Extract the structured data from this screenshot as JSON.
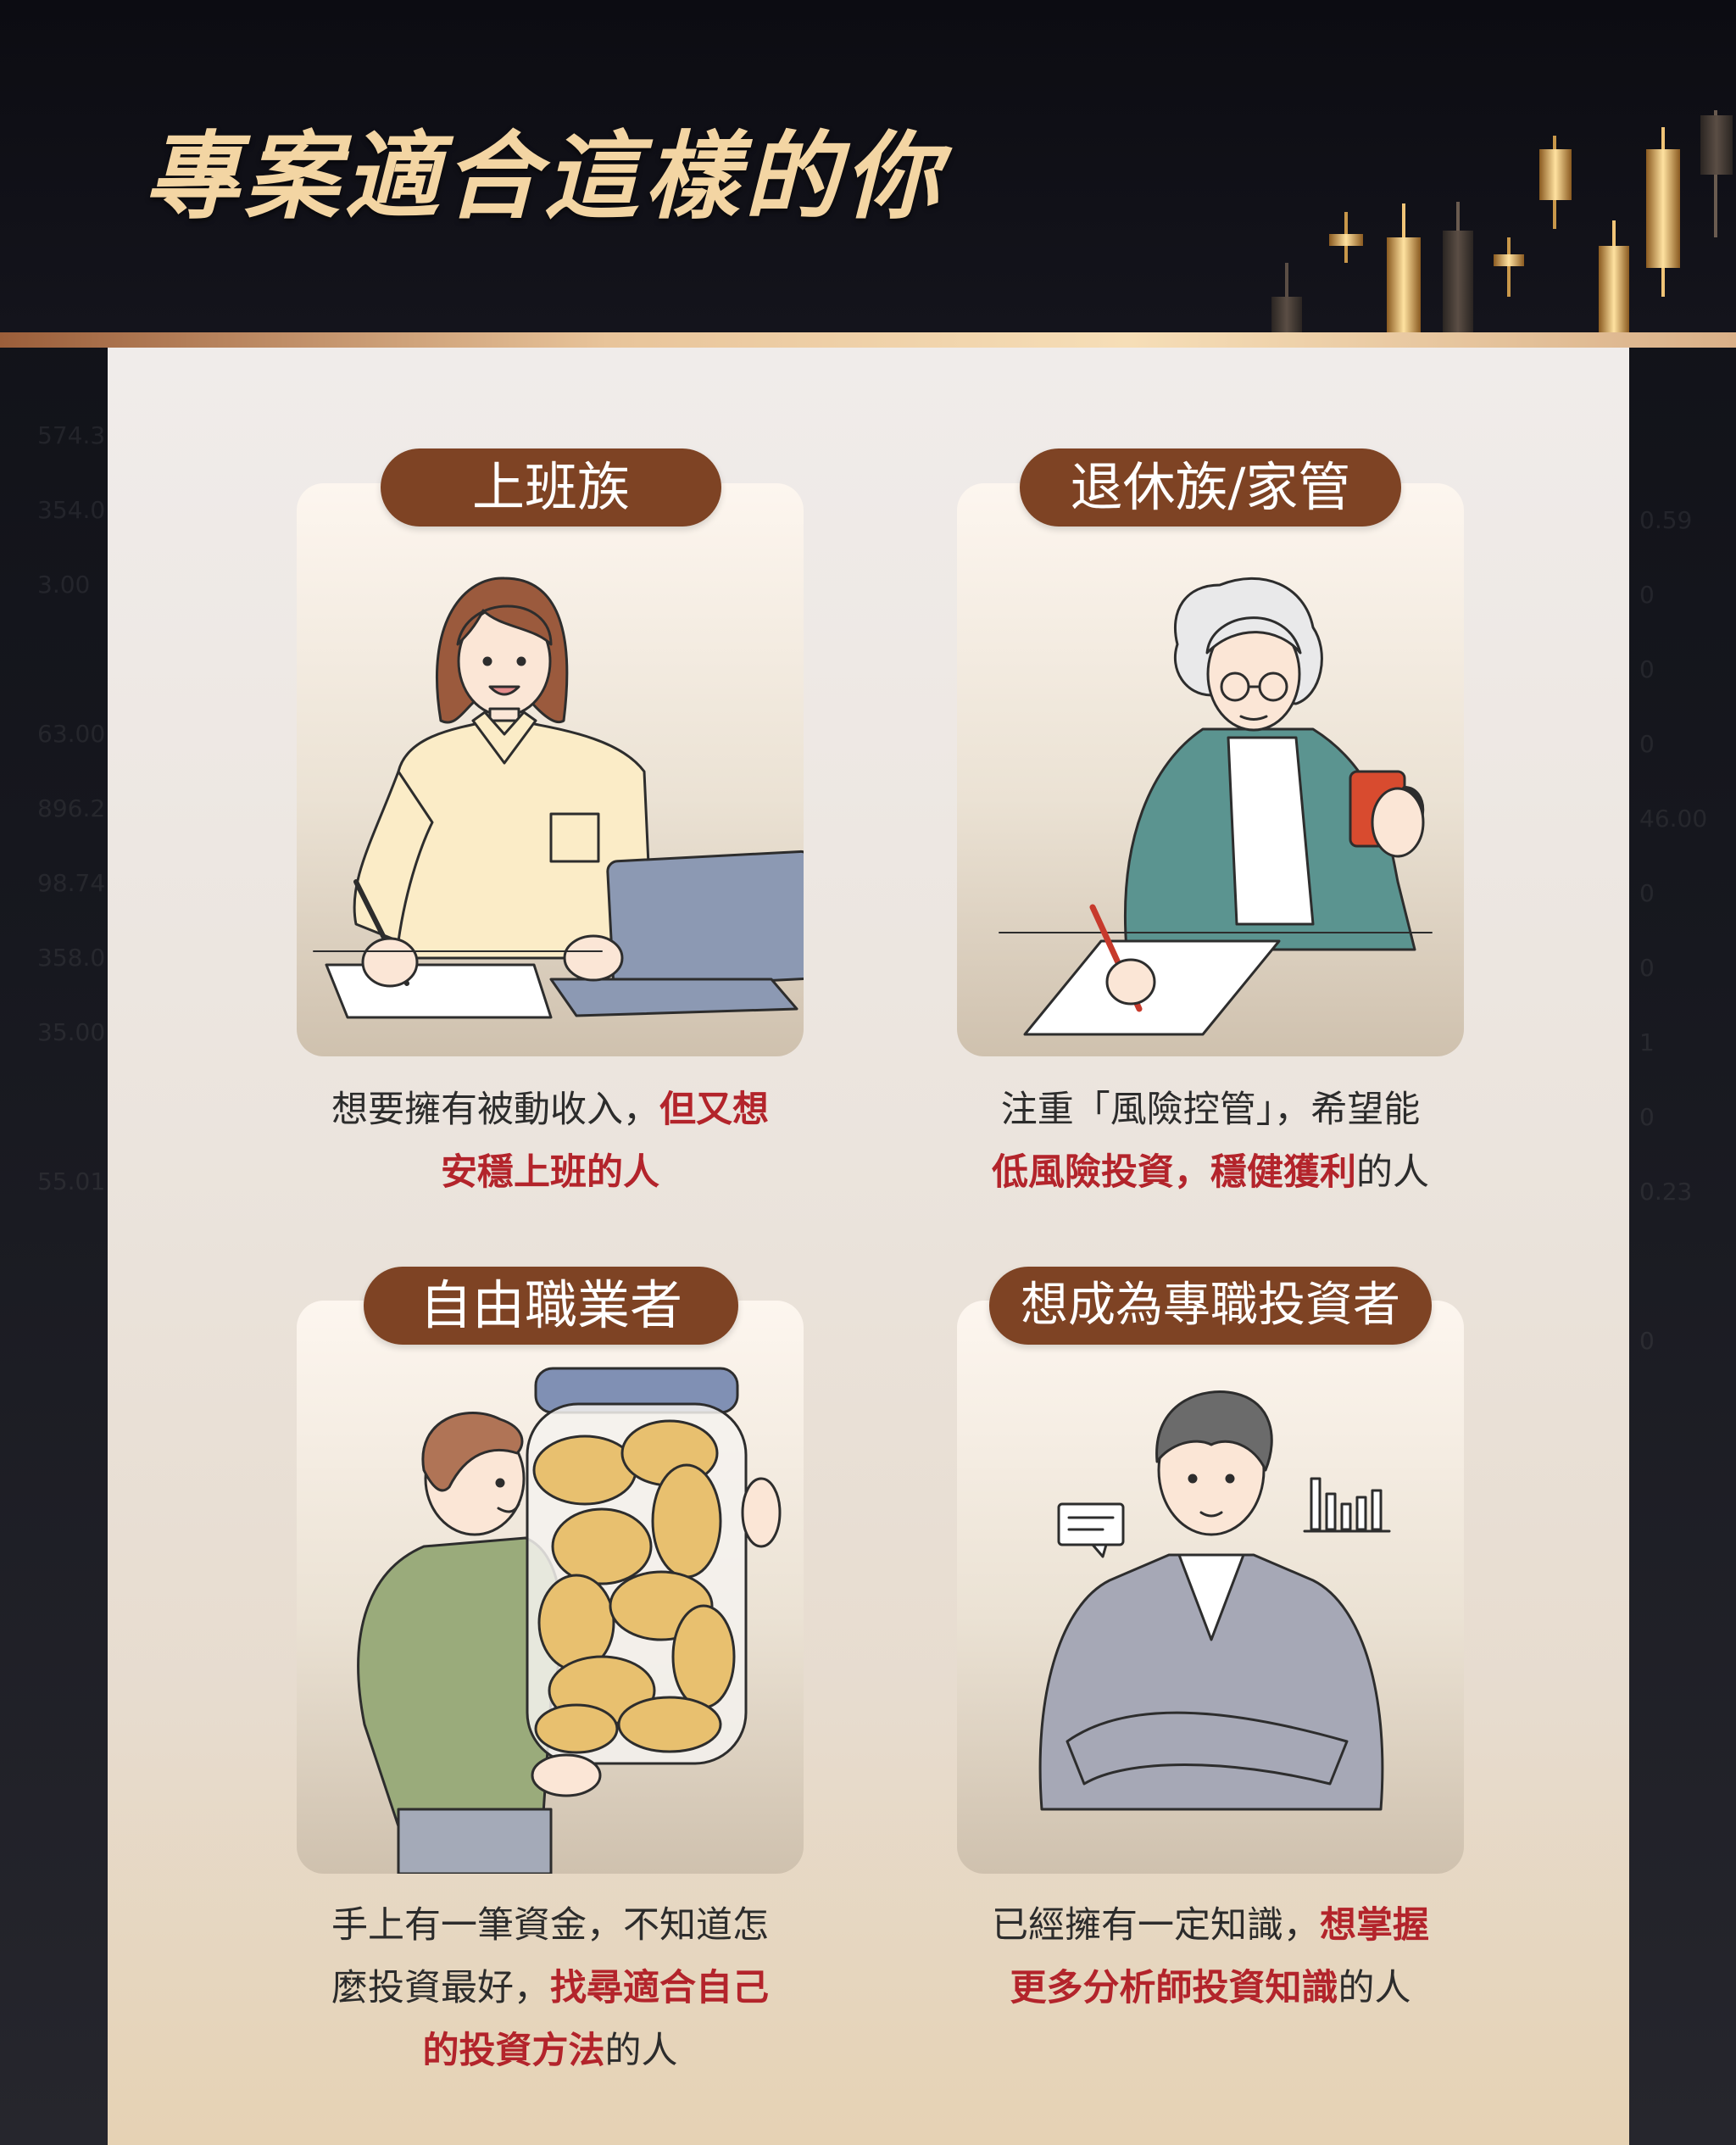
{
  "header": {
    "title": "專案適合這樣的你"
  },
  "background_numbers": {
    "left": [
      "574.3",
      "354.0",
      "3.00",
      "63.00",
      "896.2",
      "98.74",
      "358.0",
      "35.00",
      "55.01"
    ],
    "right": [
      "0.59",
      "0",
      "0",
      "0",
      "46.00",
      "0",
      "0",
      "1",
      "0",
      "0.23",
      "0"
    ]
  },
  "cards": [
    {
      "tag": "上班族",
      "desc_line1_plain": "想要擁有被動收入，",
      "desc_line1_hl": "但又想",
      "desc_line2_hl": "安穩上班的人",
      "icon": "office-worker-illustration"
    },
    {
      "tag": "退休族/家管",
      "desc_line1_plain": "注重「風險控管」，希望能",
      "desc_line2_hl": "低風險投資，穩健獲利",
      "desc_line2_plain": "的人",
      "icon": "retiree-illustration"
    },
    {
      "tag": "自由職業者",
      "desc_line1_plain": "手上有一筆資金，不知道怎",
      "desc_line2_plain": "麼投資最好，",
      "desc_line2_hl": "找尋適合自己",
      "desc_line3_hl": "的投資方法",
      "desc_line3_plain": "的人",
      "icon": "coin-jar-illustration"
    },
    {
      "tag": "想成為專職投資者",
      "desc_line1_plain": "已經擁有一定知識，",
      "desc_line1_hl": "想掌握",
      "desc_line2_hl": "更多分析師投資知識",
      "desc_line2_plain": "的人",
      "icon": "investor-illustration"
    }
  ],
  "colors": {
    "tag_background": "#7e4324",
    "highlight": "#b3242b",
    "title": "#f3d5a3"
  }
}
